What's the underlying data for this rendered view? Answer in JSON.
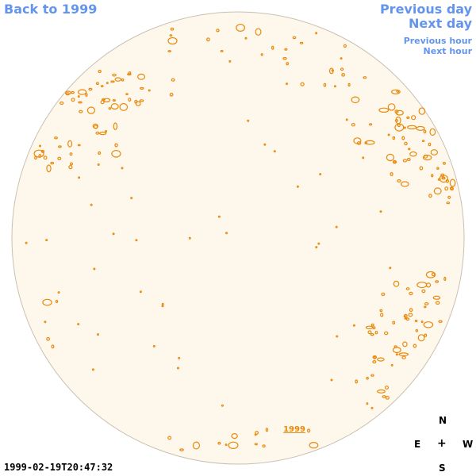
{
  "nav": {
    "back_label": "Back to 1999",
    "prev_day_label": "Previous day",
    "next_day_label": "Next day",
    "prev_hour_label": "Previous hour",
    "next_hour_label": "Next hour"
  },
  "map": {
    "year_label": "1999",
    "disc_fill": "#fef8ec",
    "contour_color": "#e8890c"
  },
  "compass": {
    "north": "N",
    "east": "E",
    "center": "+",
    "west": "W",
    "south": "S"
  },
  "timestamp": "1999-02-19T20:47:32",
  "colors": {
    "link": "#6495ed",
    "text": "#000000"
  }
}
